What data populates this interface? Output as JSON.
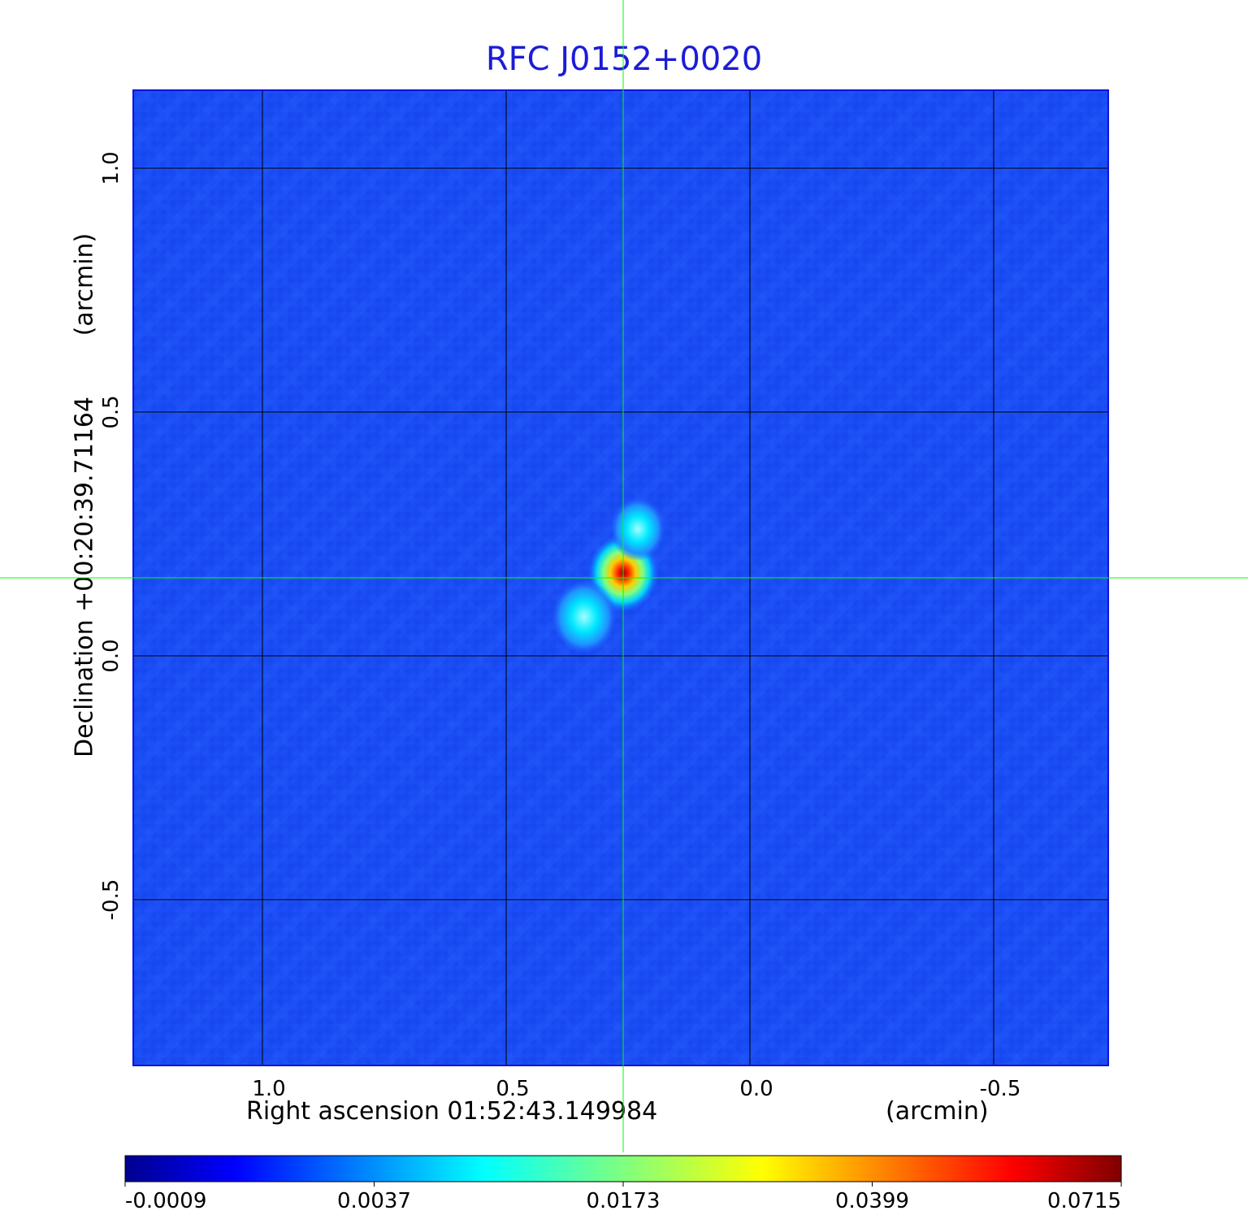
{
  "chart_data": {
    "type": "heatmap",
    "title": "RFC J0152+0020",
    "xlabel": "Right ascension  01:52:43.149984",
    "xlabel_unit": "(arcmin)",
    "ylabel": "Declination  +00:20:39.71164",
    "ylabel_unit": "(arcmin)",
    "x_ticks": [
      {
        "value": 1.0,
        "label": "1.0"
      },
      {
        "value": 0.5,
        "label": "0.5"
      },
      {
        "value": 0.0,
        "label": "0.0"
      },
      {
        "value": -0.5,
        "label": "-0.5"
      }
    ],
    "y_ticks": [
      {
        "value": 1.0,
        "label": "1.0"
      },
      {
        "value": 0.5,
        "label": "0.5"
      },
      {
        "value": 0.0,
        "label": "0.0"
      },
      {
        "value": -0.5,
        "label": "-0.5"
      }
    ],
    "xlim": [
      1.265,
      -0.735
    ],
    "ylim": [
      -0.84,
      1.16
    ],
    "grid": true,
    "crosshair": {
      "x": 0.26,
      "y": 0.16
    },
    "sources": [
      {
        "x": 0.26,
        "y": 0.17,
        "peak": 0.0715
      },
      {
        "x": 0.34,
        "y": 0.08,
        "peak": 0.006
      },
      {
        "x": 0.23,
        "y": 0.26,
        "peak": 0.004
      }
    ],
    "colorbar": {
      "colormap": "jet",
      "tick_labels": [
        "-0.0009",
        "0.0037",
        "0.0173",
        "0.0399",
        "0.0715"
      ]
    },
    "colors": {
      "title": "#1c1cd6",
      "background_map": "#1a4cf5",
      "crosshair": "#00ff00",
      "grid": "#000000"
    }
  }
}
